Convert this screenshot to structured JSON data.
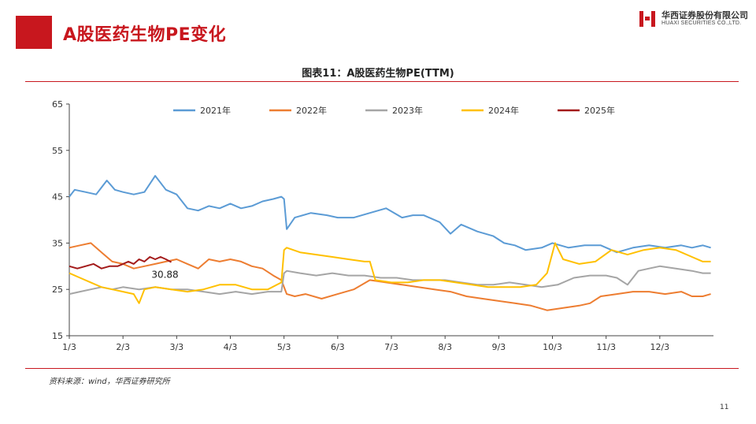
{
  "header": {
    "title": "A股医药生物PE变化",
    "logo_cn": "华西证券股份有限公司",
    "logo_en": "HUAXI SECURITIES CO.,LTD.",
    "accent_color": "#c8171e"
  },
  "figure": {
    "title": "图表11：A股医药生物PE(TTM)"
  },
  "footer": {
    "source": "资料来源：wind，华西证券研究所",
    "page_number": "11"
  },
  "chart_data": {
    "type": "line",
    "title": "",
    "xlabel": "",
    "ylabel": "",
    "ylim": [
      15,
      65
    ],
    "yticks": [
      "15",
      "25",
      "35",
      "45",
      "55",
      "65"
    ],
    "x_ticks": [
      "1/3",
      "2/3",
      "3/3",
      "4/3",
      "5/3",
      "6/3",
      "7/3",
      "8/3",
      "9/3",
      "10/3",
      "11/3",
      "12/3"
    ],
    "grid": false,
    "legend_position": "top",
    "annotation": {
      "text": "30.88",
      "x": 1.9,
      "y": 30.88
    },
    "series": [
      {
        "name": "2021年",
        "color": "#5b9bd5",
        "x": [
          0,
          0.1,
          0.3,
          0.5,
          0.7,
          0.85,
          1.0,
          1.2,
          1.4,
          1.6,
          1.8,
          2.0,
          2.2,
          2.4,
          2.6,
          2.8,
          3.0,
          3.2,
          3.4,
          3.6,
          3.8,
          3.95,
          4.0,
          4.05,
          4.2,
          4.5,
          4.8,
          5.0,
          5.3,
          5.6,
          5.9,
          6.2,
          6.4,
          6.6,
          6.9,
          7.1,
          7.3,
          7.6,
          7.9,
          8.1,
          8.3,
          8.5,
          8.8,
          9.0,
          9.3,
          9.6,
          9.9,
          10.2,
          10.5,
          10.8,
          11.1,
          11.4,
          11.6,
          11.8,
          11.95
        ],
        "y": [
          45,
          46.5,
          46,
          45.5,
          48.5,
          46.5,
          46,
          45.5,
          46,
          49.5,
          46.5,
          45.5,
          42.5,
          42,
          43,
          42.5,
          43.5,
          42.5,
          43,
          44,
          44.5,
          45,
          44.5,
          38,
          40.5,
          41.5,
          41,
          40.5,
          40.5,
          41.5,
          42.5,
          40.5,
          41,
          41,
          39.5,
          37,
          39,
          37.5,
          36.5,
          35,
          34.5,
          33.5,
          34,
          35,
          34,
          34.5,
          34.5,
          33,
          34,
          34.5,
          34,
          34.5,
          34,
          34.5,
          34
        ]
      },
      {
        "name": "2022年",
        "color": "#ed7d31",
        "x": [
          0,
          0.2,
          0.4,
          0.6,
          0.8,
          1.0,
          1.2,
          1.4,
          1.6,
          1.8,
          2.0,
          2.2,
          2.4,
          2.6,
          2.8,
          3.0,
          3.2,
          3.4,
          3.6,
          3.8,
          3.95,
          4.05,
          4.2,
          4.4,
          4.7,
          5.0,
          5.3,
          5.6,
          5.9,
          6.2,
          6.5,
          6.8,
          7.1,
          7.4,
          7.7,
          8.0,
          8.3,
          8.6,
          8.9,
          9.2,
          9.5,
          9.7,
          9.9,
          10.2,
          10.5,
          10.8,
          11.1,
          11.4,
          11.6,
          11.8,
          11.95
        ],
        "y": [
          34,
          34.5,
          35,
          33,
          31,
          30.5,
          29.5,
          30,
          30.5,
          31,
          31.5,
          30.5,
          29.5,
          31.5,
          31,
          31.5,
          31,
          30,
          29.5,
          28,
          27,
          24,
          23.5,
          24,
          23,
          24,
          25,
          27,
          26.5,
          26,
          25.5,
          25,
          24.5,
          23.5,
          23,
          22.5,
          22,
          21.5,
          20.5,
          21,
          21.5,
          22,
          23.5,
          24,
          24.5,
          24.5,
          24,
          24.5,
          23.5,
          23.5,
          24
        ]
      },
      {
        "name": "2023年",
        "color": "#a5a5a5",
        "x": [
          0,
          0.2,
          0.4,
          0.6,
          0.8,
          1.0,
          1.3,
          1.6,
          1.9,
          2.2,
          2.5,
          2.8,
          3.1,
          3.4,
          3.7,
          3.95,
          4.0,
          4.05,
          4.3,
          4.6,
          4.9,
          5.2,
          5.5,
          5.8,
          6.1,
          6.4,
          6.7,
          7.0,
          7.3,
          7.6,
          7.9,
          8.2,
          8.5,
          8.8,
          9.1,
          9.4,
          9.7,
          10.0,
          10.2,
          10.4,
          10.6,
          10.8,
          11.0,
          11.3,
          11.6,
          11.8,
          11.95
        ],
        "y": [
          24,
          24.5,
          25,
          25.5,
          25,
          25.5,
          25,
          25.5,
          25,
          25,
          24.5,
          24,
          24.5,
          24,
          24.5,
          24.5,
          28.5,
          29,
          28.5,
          28,
          28.5,
          28,
          28,
          27.5,
          27.5,
          27,
          27,
          27,
          26.5,
          26,
          26,
          26.5,
          26,
          25.5,
          26,
          27.5,
          28,
          28,
          27.5,
          26,
          29,
          29.5,
          30,
          29.5,
          29,
          28.5,
          28.5
        ]
      },
      {
        "name": "2024年",
        "color": "#ffc000",
        "x": [
          0,
          0.2,
          0.4,
          0.6,
          0.8,
          1.0,
          1.2,
          1.3,
          1.4,
          1.6,
          1.9,
          2.2,
          2.5,
          2.8,
          3.1,
          3.4,
          3.7,
          3.95,
          4.0,
          4.05,
          4.3,
          4.6,
          4.9,
          5.2,
          5.5,
          5.6,
          5.7,
          6.0,
          6.3,
          6.6,
          6.9,
          7.2,
          7.5,
          7.8,
          8.1,
          8.4,
          8.7,
          8.9,
          9.05,
          9.2,
          9.5,
          9.8,
          10.1,
          10.4,
          10.7,
          11.0,
          11.3,
          11.6,
          11.8,
          11.95
        ],
        "y": [
          28.5,
          27.5,
          26.5,
          25.5,
          25,
          24.5,
          24,
          22,
          25,
          25.5,
          25,
          24.5,
          25,
          26,
          26,
          25,
          25,
          26.5,
          33.5,
          34,
          33,
          32.5,
          32,
          31.5,
          31,
          31,
          27,
          26.5,
          26.5,
          27,
          27,
          26.5,
          26,
          25.5,
          25.5,
          25.5,
          26,
          28.5,
          35,
          31.5,
          30.5,
          31,
          33.5,
          32.5,
          33.5,
          34,
          33.5,
          32,
          31,
          31
        ]
      },
      {
        "name": "2025年",
        "color": "#a31a1a",
        "x": [
          0,
          0.15,
          0.3,
          0.45,
          0.6,
          0.75,
          0.9,
          1.0,
          1.1,
          1.2,
          1.3,
          1.4,
          1.5,
          1.6,
          1.7,
          1.8,
          1.9
        ],
        "y": [
          30,
          29.5,
          30,
          30.5,
          29.5,
          30,
          30,
          30.5,
          31,
          30.5,
          31.5,
          31,
          32,
          31.5,
          32,
          31.5,
          30.88
        ]
      }
    ]
  }
}
